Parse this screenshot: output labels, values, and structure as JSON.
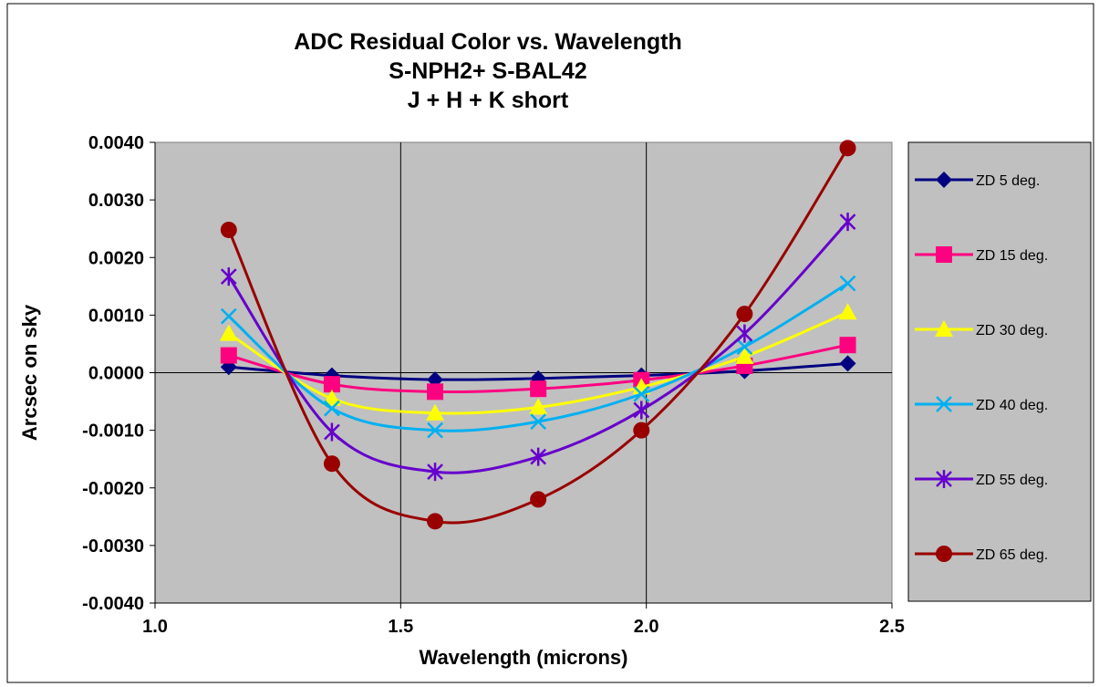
{
  "chart_data": {
    "type": "line",
    "title_lines": [
      "ADC Residual Color vs. Wavelength",
      "S-NPH2+ S-BAL42",
      "J + H + K short"
    ],
    "xlabel": "Wavelength (microns)",
    "ylabel": "Arcsec on sky",
    "xlim": [
      1.0,
      2.5
    ],
    "ylim": [
      -0.004,
      0.004
    ],
    "x_ticks": [
      1.0,
      1.5,
      2.0,
      2.5
    ],
    "x_tick_labels": [
      "1.0",
      "1.5",
      "2.0",
      "2.5"
    ],
    "y_ticks": [
      0.004,
      0.003,
      0.002,
      0.001,
      0.0,
      -0.001,
      -0.002,
      -0.003,
      -0.004
    ],
    "y_tick_labels": [
      "0.0040",
      "0.0030",
      "0.0020",
      "0.0010",
      "0.0000",
      "-0.0010",
      "-0.0020",
      "-0.0030",
      "-0.0040"
    ],
    "grid": "vertical major gridlines",
    "plot_background": "#c0c0c0",
    "legend_position": "right",
    "x": [
      1.15,
      1.36,
      1.57,
      1.78,
      1.99,
      2.2,
      2.41
    ],
    "series": [
      {
        "name": "ZD 5 deg.",
        "color": "#000080",
        "marker": "diamond",
        "values": [
          0.0001,
          -5e-05,
          -0.00012,
          -0.0001,
          -5e-05,
          3e-05,
          0.00016
        ]
      },
      {
        "name": "ZD 15 deg.",
        "color": "#ff0080",
        "marker": "square",
        "values": [
          0.0003,
          -0.0002,
          -0.00033,
          -0.00028,
          -0.00013,
          0.00012,
          0.00048
        ]
      },
      {
        "name": "ZD 30 deg.",
        "color": "#ffff00",
        "marker": "triangle",
        "values": [
          0.00068,
          -0.00045,
          -0.0007,
          -0.0006,
          -0.00025,
          0.00028,
          0.00105
        ]
      },
      {
        "name": "ZD 40 deg.",
        "color": "#00b0f0",
        "marker": "x",
        "values": [
          0.00098,
          -0.00062,
          -0.001,
          -0.00085,
          -0.00037,
          0.00045,
          0.00155
        ]
      },
      {
        "name": "ZD 55 deg.",
        "color": "#6600cc",
        "marker": "asterisk",
        "values": [
          0.00167,
          -0.00103,
          -0.00172,
          -0.00146,
          -0.00065,
          0.00068,
          0.00262
        ]
      },
      {
        "name": "ZD 65 deg.",
        "color": "#990000",
        "marker": "circle",
        "values": [
          0.00248,
          -0.00158,
          -0.00258,
          -0.0022,
          -0.001,
          0.00102,
          0.0039
        ]
      }
    ]
  }
}
